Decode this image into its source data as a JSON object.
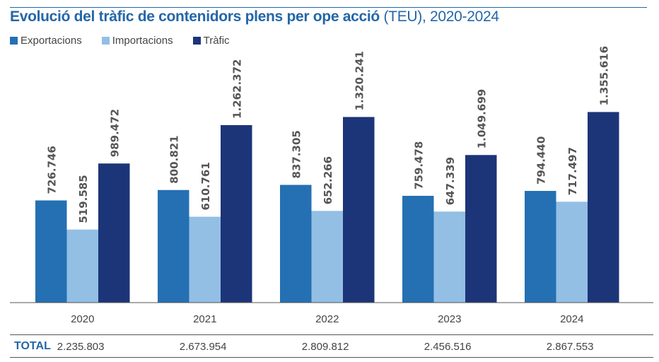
{
  "chart_data": {
    "type": "bar",
    "title_bold": "Evolució del tràfic de contenidors plens per ope acció",
    "title_rest": " (TEU), 2020-2024",
    "categories": [
      "2020",
      "2021",
      "2022",
      "2023",
      "2024"
    ],
    "series": [
      {
        "name": "Exportacions",
        "color": "#2470b3",
        "values": [
          726746,
          800821,
          837305,
          759478,
          794440
        ],
        "labels": [
          "726.746",
          "800.821",
          "837.305",
          "759.478",
          "794.440"
        ]
      },
      {
        "name": "Importacions",
        "color": "#93bfe5",
        "values": [
          519585,
          610761,
          652266,
          647339,
          717497
        ],
        "labels": [
          "519.585",
          "610.761",
          "652.266",
          "647.339",
          "717.497"
        ]
      },
      {
        "name": "Tràfic",
        "color": "#1c3578",
        "values": [
          989472,
          1262372,
          1320241,
          1049699,
          1355616
        ],
        "labels": [
          "989.472",
          "1.262.372",
          "1.320.241",
          "1.049.699",
          "1.355.616"
        ]
      }
    ],
    "ylim": [
      0,
      1750000
    ],
    "grid": false,
    "legend_position": "top-left",
    "total_label": "TOTAL",
    "totals": [
      "2.235.803",
      "2.673.954",
      "2.809.812",
      "2.456.516",
      "2.867.553"
    ]
  }
}
